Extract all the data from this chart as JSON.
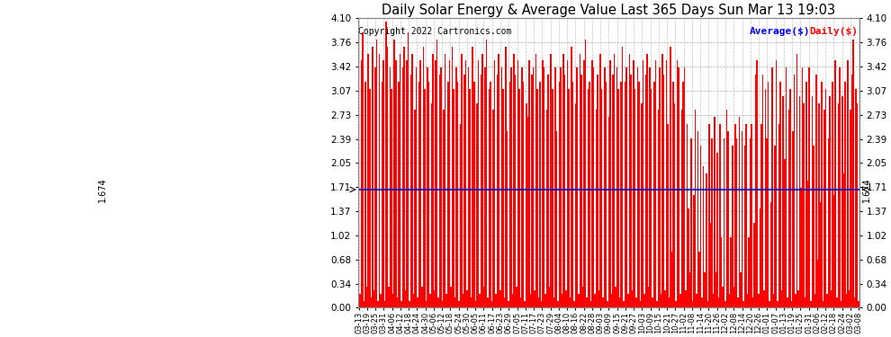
{
  "title": "Daily Solar Energy & Average Value Last 365 Days Sun Mar 13 19:03",
  "copyright": "Copyright 2022 Cartronics.com",
  "average_label": "Average($)",
  "daily_label": "Daily($)",
  "average_value": 1.674,
  "ylim": [
    0.0,
    4.1
  ],
  "yticks": [
    0.0,
    0.34,
    0.68,
    1.02,
    1.37,
    1.71,
    2.05,
    2.39,
    2.73,
    3.07,
    3.42,
    3.76,
    4.1
  ],
  "bar_color": "#ff0000",
  "avg_line_color": "#0000cc",
  "background_color": "#ffffff",
  "grid_color": "#999999",
  "title_color": "#000000",
  "copyright_color": "#000000",
  "avg_label_color": "#0000ff",
  "daily_label_color": "#ff0000",
  "avg_text_color": "#000000",
  "x_labels": [
    "03-13",
    "03-19",
    "03-25",
    "03-31",
    "04-06",
    "04-12",
    "04-18",
    "04-24",
    "04-30",
    "05-06",
    "05-12",
    "05-18",
    "05-24",
    "05-30",
    "06-05",
    "06-11",
    "06-17",
    "06-23",
    "06-29",
    "07-05",
    "07-11",
    "07-17",
    "07-23",
    "07-29",
    "08-04",
    "08-10",
    "08-16",
    "08-22",
    "08-28",
    "09-03",
    "09-09",
    "09-15",
    "09-21",
    "09-27",
    "10-03",
    "10-09",
    "10-15",
    "10-21",
    "10-27",
    "11-02",
    "11-08",
    "11-14",
    "11-20",
    "11-26",
    "12-02",
    "12-08",
    "12-14",
    "12-20",
    "12-26",
    "01-01",
    "01-07",
    "01-13",
    "01-19",
    "01-25",
    "01-31",
    "02-06",
    "02-12",
    "02-18",
    "02-24",
    "03-02",
    "03-08"
  ],
  "values": [
    3.8,
    0.2,
    3.5,
    3.9,
    0.1,
    3.2,
    0.3,
    3.6,
    3.1,
    0.15,
    3.7,
    0.25,
    3.4,
    3.8,
    0.1,
    3.6,
    0.2,
    3.2,
    3.5,
    0.1,
    4.05,
    3.7,
    0.3,
    3.4,
    3.1,
    0.2,
    3.8,
    3.5,
    0.15,
    3.2,
    3.6,
    0.1,
    3.4,
    3.7,
    0.25,
    3.5,
    3.9,
    0.1,
    3.3,
    3.6,
    0.2,
    2.8,
    3.4,
    0.15,
    3.2,
    3.5,
    0.3,
    3.7,
    3.1,
    0.1,
    3.4,
    3.2,
    0.2,
    2.9,
    3.6,
    0.25,
    3.5,
    3.8,
    0.15,
    3.3,
    3.4,
    0.1,
    2.8,
    3.6,
    0.2,
    3.2,
    3.5,
    0.3,
    3.7,
    3.1,
    0.15,
    3.4,
    3.2,
    0.1,
    2.6,
    3.6,
    0.2,
    3.3,
    3.5,
    0.25,
    3.4,
    3.1,
    0.15,
    3.7,
    3.2,
    0.1,
    2.9,
    3.5,
    0.2,
    3.3,
    3.6,
    0.3,
    3.4,
    3.8,
    0.15,
    3.1,
    3.2,
    0.1,
    2.8,
    3.5,
    0.2,
    3.3,
    3.6,
    0.25,
    3.4,
    3.1,
    0.15,
    3.7,
    2.5,
    0.1,
    3.2,
    3.4,
    0.2,
    3.6,
    3.3,
    0.3,
    3.5,
    3.1,
    0.15,
    3.4,
    3.2,
    0.1,
    2.9,
    2.7,
    3.5,
    0.2,
    3.3,
    3.4,
    0.25,
    3.6,
    3.1,
    0.15,
    3.2,
    0.1,
    3.5,
    3.4,
    0.2,
    2.8,
    3.3,
    0.3,
    3.6,
    3.1,
    0.15,
    3.4,
    2.5,
    0.1,
    3.2,
    3.4,
    0.2,
    3.6,
    3.3,
    0.25,
    3.5,
    3.1,
    0.15,
    3.7,
    3.2,
    0.1,
    2.9,
    3.4,
    0.2,
    3.6,
    3.3,
    0.3,
    3.5,
    3.8,
    0.15,
    3.1,
    3.2,
    0.1,
    3.5,
    3.4,
    0.2,
    2.8,
    3.3,
    0.25,
    3.6,
    3.1,
    0.15,
    3.4,
    3.2,
    0.1,
    2.7,
    3.5,
    0.2,
    3.3,
    3.6,
    0.3,
    3.4,
    3.1,
    0.15,
    3.2,
    3.7,
    0.1,
    3.2,
    3.4,
    0.2,
    3.6,
    3.3,
    0.25,
    3.5,
    3.1,
    0.15,
    3.4,
    3.2,
    0.1,
    2.9,
    3.5,
    0.2,
    3.3,
    3.6,
    0.3,
    3.4,
    3.1,
    0.15,
    3.2,
    3.5,
    0.1,
    2.8,
    3.4,
    0.2,
    3.6,
    3.3,
    0.25,
    3.5,
    2.6,
    0.15,
    3.7,
    0.8,
    3.2,
    2.9,
    0.1,
    3.5,
    3.4,
    0.2,
    2.8,
    3.2,
    3.4,
    0.25,
    2.6,
    1.4,
    0.5,
    2.4,
    0.1,
    1.6,
    2.8,
    0.2,
    2.5,
    0.8,
    2.3,
    0.15,
    2.0,
    0.5,
    1.9,
    0.1,
    2.6,
    1.2,
    2.4,
    0.2,
    2.7,
    0.5,
    2.2,
    0.15,
    2.6,
    1.0,
    0.3,
    2.4,
    0.1,
    2.8,
    2.5,
    0.2,
    1.0,
    2.3,
    0.3,
    2.6,
    2.4,
    0.15,
    2.7,
    0.5,
    2.5,
    0.1,
    2.3,
    2.6,
    0.2,
    1.0,
    2.4,
    2.6,
    0.15,
    1.2,
    3.3,
    3.5,
    0.2,
    1.4,
    2.6,
    3.3,
    0.25,
    3.1,
    2.4,
    3.2,
    0.1,
    1.5,
    3.4,
    0.2,
    2.3,
    3.5,
    0.1,
    2.6,
    3.2,
    0.25,
    3.0,
    2.1,
    3.4,
    0.15,
    2.8,
    3.1,
    0.1,
    2.5,
    3.3,
    0.2,
    3.6,
    0.25,
    3.0,
    1.7,
    3.4,
    2.9,
    0.15,
    3.2,
    1.8,
    3.4,
    0.1,
    3.0,
    2.3,
    0.2,
    3.3,
    0.68,
    2.9,
    1.5,
    3.2,
    0.1,
    2.8,
    3.1,
    0.2,
    2.4,
    3.0,
    0.25,
    3.2,
    1.6,
    3.5,
    0.15,
    2.9,
    3.4,
    0.1,
    3.0,
    1.9,
    3.2,
    0.2,
    3.5,
    0.25,
    2.8,
    3.3,
    3.8,
    0.15,
    3.1,
    2.9,
    0.1
  ]
}
